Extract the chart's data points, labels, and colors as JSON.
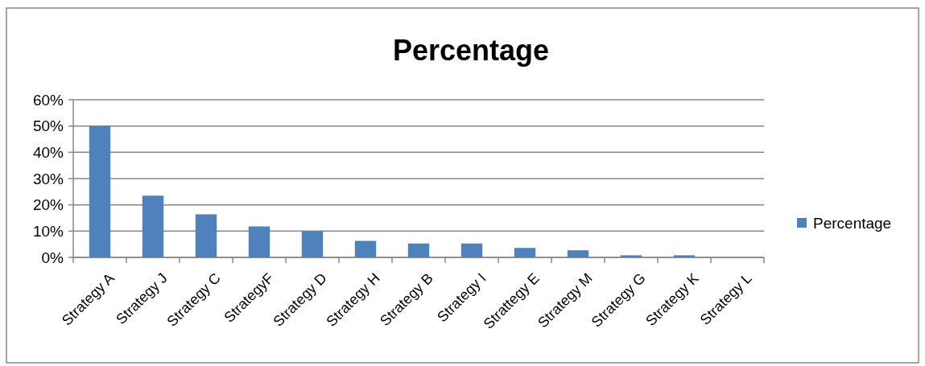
{
  "chart_data": {
    "type": "bar",
    "title": "Percentage",
    "categories": [
      "Strategy A",
      "Strategy J",
      "Strategy C",
      "StrategyF",
      "Strategy D",
      "Strategy H",
      "Strategy B",
      "Strategy I",
      "Strattegy E",
      "Strategy M",
      "Strategy G",
      "Strategy K",
      "Strategy L"
    ],
    "series": [
      {
        "name": "Percentage",
        "color": "#4f81bd",
        "values": [
          50,
          23.5,
          16.4,
          11.8,
          10,
          6.3,
          5.3,
          5.3,
          3.6,
          2.7,
          0.8,
          0.8,
          0
        ]
      }
    ],
    "ylim": [
      0,
      60
    ],
    "yticks": [
      {
        "value": 0,
        "label": "0%"
      },
      {
        "value": 10,
        "label": "10%"
      },
      {
        "value": 20,
        "label": "20%"
      },
      {
        "value": 30,
        "label": "30%"
      },
      {
        "value": 40,
        "label": "40%"
      },
      {
        "value": 50,
        "label": "50%"
      },
      {
        "value": 60,
        "label": "60%"
      }
    ],
    "grid": "y",
    "legend": "right"
  }
}
